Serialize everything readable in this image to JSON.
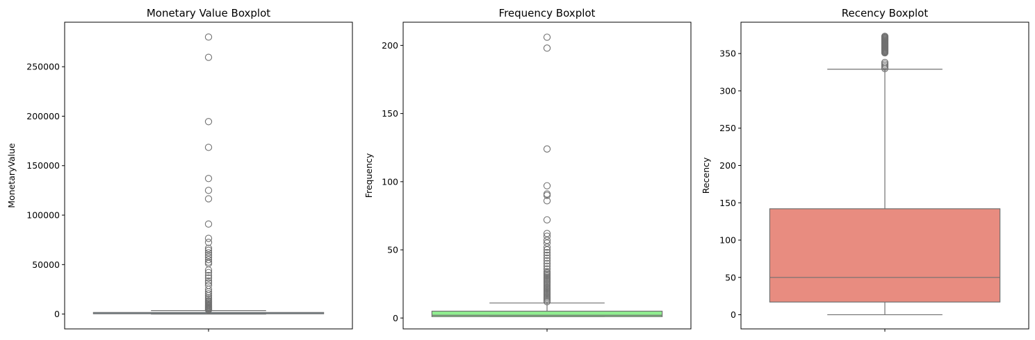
{
  "chart_data": [
    {
      "type": "boxplot",
      "title": "Monetary Value Boxplot",
      "xlabel": "",
      "ylabel": "MonetaryValue",
      "ylim": [
        -15000,
        295000
      ],
      "yticks": [
        0,
        50000,
        100000,
        150000,
        200000,
        250000
      ],
      "ytick_labels": [
        "0",
        "50000",
        "100000",
        "150000",
        "200000",
        "250000"
      ],
      "box_color": "#87CEEB",
      "line_color": "#707070",
      "box": {
        "whisker_low": 0,
        "q1": 300,
        "median": 650,
        "q3": 1600,
        "whisker_high": 3500
      },
      "outliers": [
        280000,
        259500,
        194500,
        168500,
        137000,
        125000,
        116500,
        91000,
        76500,
        72500,
        66500,
        64500,
        62000,
        59500,
        57500,
        55000,
        52500,
        51000,
        44500,
        42000,
        39000,
        36500,
        33500,
        31500,
        29000,
        25000,
        22500,
        20500,
        18500,
        16500,
        15000,
        13500,
        12500,
        11500,
        10500,
        9500,
        8800,
        8000,
        7200,
        6500,
        5800,
        5200,
        4600,
        4100
      ]
    },
    {
      "type": "boxplot",
      "title": "Frequency Boxplot",
      "xlabel": "",
      "ylabel": "Frequency",
      "ylim": [
        -8,
        217
      ],
      "yticks": [
        0,
        50,
        100,
        150,
        200
      ],
      "ytick_labels": [
        "0",
        "50",
        "100",
        "150",
        "200"
      ],
      "box_color": "#90EE90",
      "line_color": "#707070",
      "box": {
        "whisker_low": 1,
        "q1": 1,
        "median": 2,
        "q3": 5,
        "whisker_high": 11
      },
      "outliers": [
        206,
        198,
        124,
        97,
        91,
        90,
        86,
        72,
        62,
        60,
        57,
        55,
        52,
        50,
        48,
        46,
        44,
        42,
        40,
        38,
        36,
        34,
        33,
        32,
        31,
        30,
        29,
        28,
        27,
        26,
        25,
        24,
        23,
        22,
        21,
        20,
        19,
        18,
        17,
        16,
        15,
        14,
        13,
        12
      ]
    },
    {
      "type": "boxplot",
      "title": "Recency Boxplot",
      "xlabel": "",
      "ylabel": "Recency",
      "ylim": [
        -19,
        392
      ],
      "yticks": [
        0,
        50,
        100,
        150,
        200,
        250,
        300,
        350
      ],
      "ytick_labels": [
        "0",
        "50",
        "100",
        "150",
        "200",
        "250",
        "300",
        "350"
      ],
      "box_color": "#E88C80",
      "line_color": "#707070",
      "box": {
        "whisker_low": 0,
        "q1": 17,
        "median": 50,
        "q3": 142,
        "whisker_high": 329
      },
      "outliers": [
        373,
        372,
        371,
        370,
        369,
        368,
        367,
        366,
        365,
        364,
        363,
        362,
        361,
        360,
        359,
        358,
        357,
        356,
        355,
        354,
        353,
        352,
        351,
        338,
        336,
        334,
        332,
        330
      ]
    }
  ]
}
